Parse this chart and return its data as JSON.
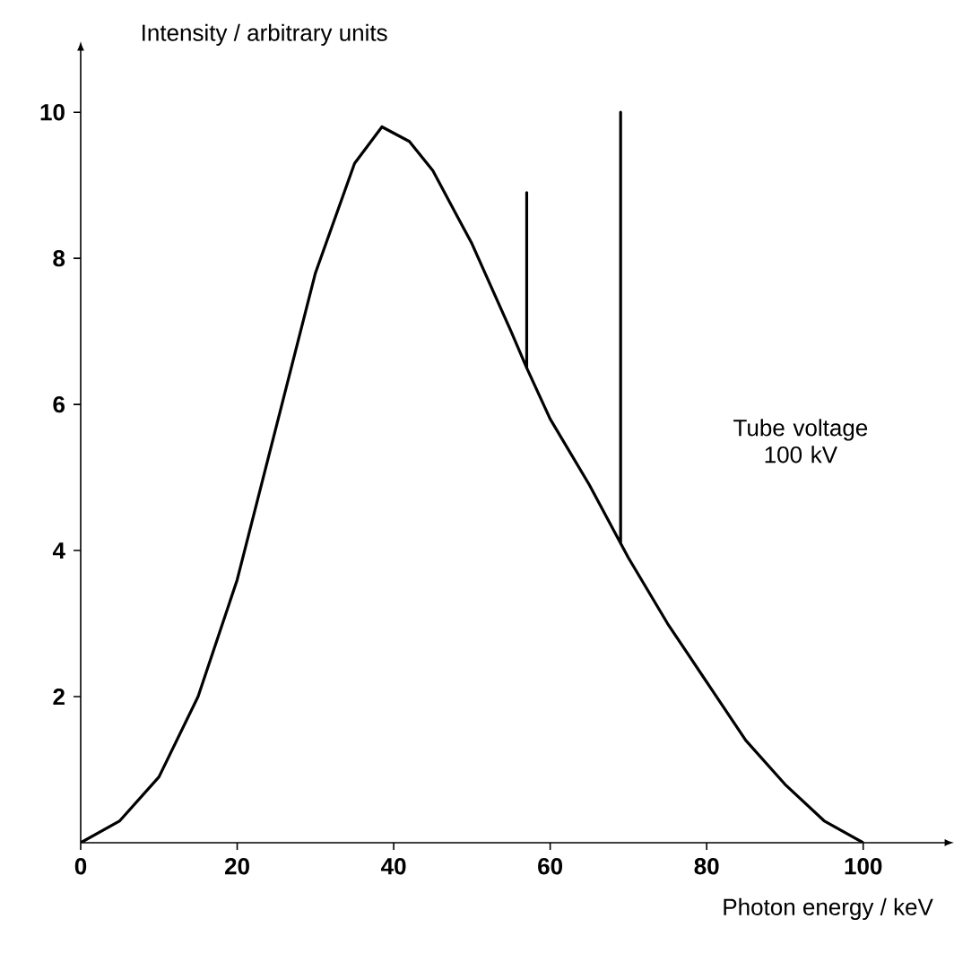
{
  "chart_data": {
    "type": "line",
    "xlabel": "Photon energy / keV",
    "ylabel": "Intensity / arbitrary units",
    "x": [
      0,
      5,
      10,
      15,
      20,
      25,
      30,
      35,
      38.5,
      42,
      45,
      50,
      55,
      57,
      57,
      57,
      60,
      65,
      69,
      69,
      69,
      70,
      75,
      80,
      85,
      90,
      95,
      100
    ],
    "values": [
      0,
      0.3,
      0.9,
      2.0,
      3.6,
      5.7,
      7.8,
      9.3,
      9.8,
      9.6,
      9.2,
      8.2,
      7.0,
      6.5,
      8.9,
      6.5,
      5.8,
      4.9,
      4.1,
      10,
      4.1,
      3.9,
      3.0,
      2.2,
      1.4,
      0.8,
      0.3,
      0
    ],
    "color": "#000000",
    "marker": "none",
    "line_style": "solid",
    "grid": false,
    "xlim": [
      0,
      110
    ],
    "ylim": [
      0,
      10.8
    ],
    "xticks": [
      0,
      20,
      40,
      60,
      80,
      100
    ],
    "yticks": [
      2,
      4,
      6,
      8,
      10
    ],
    "annotations": [
      "Tube voltage 100 kV"
    ]
  }
}
